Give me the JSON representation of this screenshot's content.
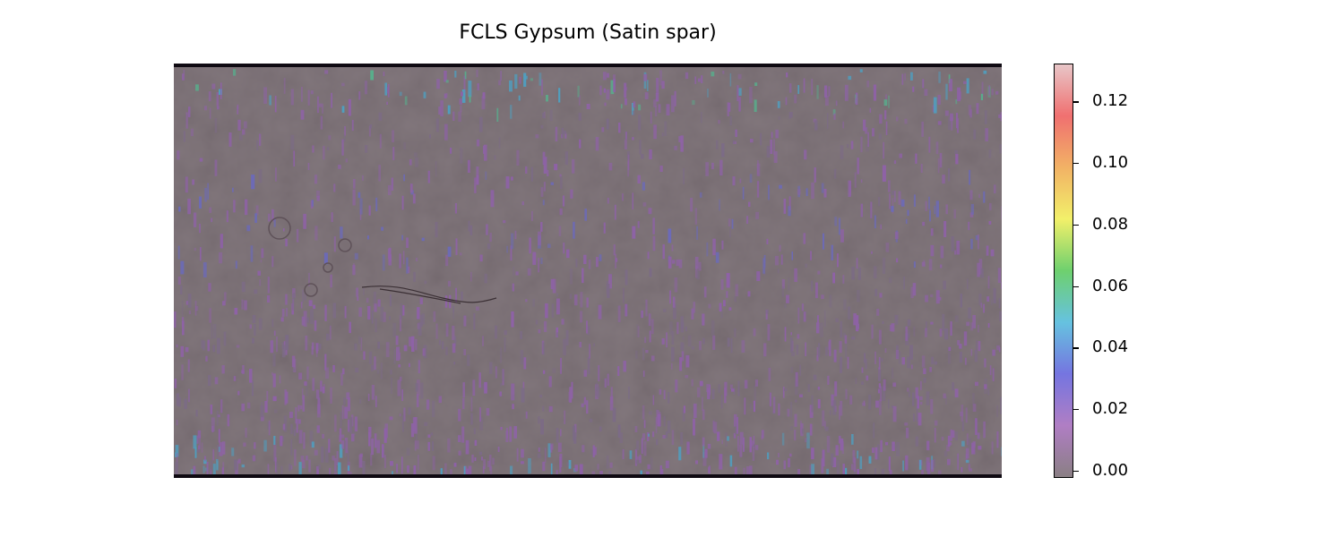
{
  "title": "FCLS Gypsum (Satin spar)",
  "colorbar": {
    "min": 0.0,
    "max": 0.13,
    "ticks": [
      {
        "value": 0.0,
        "label": "0.00"
      },
      {
        "value": 0.02,
        "label": "0.02"
      },
      {
        "value": 0.04,
        "label": "0.04"
      },
      {
        "value": 0.06,
        "label": "0.06"
      },
      {
        "value": 0.08,
        "label": "0.08"
      },
      {
        "value": 0.1,
        "label": "0.10"
      },
      {
        "value": 0.12,
        "label": "0.12"
      }
    ],
    "colormap": [
      "#8a7f84",
      "#b07ec4",
      "#7575e0",
      "#66c2e0",
      "#6ed06e",
      "#f2f06a",
      "#f2b265",
      "#f07070",
      "#e8c6c8"
    ]
  },
  "map": {
    "background_color": "#75696f",
    "border_color": "#0f0a12",
    "palette": {
      "faint": "#7c6b86",
      "purple": "#8e62a6",
      "blue": "#6c6ab8",
      "cyan": "#4f9fc0",
      "green": "#58ae8c"
    }
  }
}
